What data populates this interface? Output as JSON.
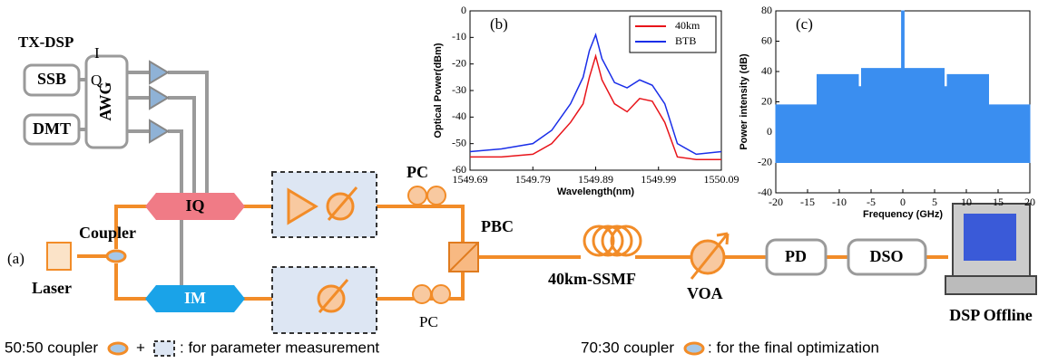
{
  "diagram": {
    "tx_dsp": "TX-DSP",
    "i": "I",
    "q": "Q",
    "ssb": "SSB",
    "dmt": "DMT",
    "awg": "AWG",
    "iq": "IQ",
    "im": "IM",
    "laser": "Laser",
    "coupler": "Coupler",
    "panel_a": "(a)",
    "pc_top": "PC",
    "pc_bottom": "PC",
    "pbc": "PBC",
    "fiber": "40km-SSMF",
    "voa": "VOA",
    "pd": "PD",
    "dso": "DSO",
    "dsp_offline": "DSP Offline",
    "legend": {
      "coupler_5050": "50:50 coupler",
      "plus": "+",
      "param": ": for parameter measurement",
      "coupler_7030": "70:30 coupler",
      "final": ": for the final optimization"
    }
  },
  "chart_data": [
    {
      "type": "line",
      "panel": "(b)",
      "x_label": "Wavelength(nm)",
      "y_label": "Optical Power(dBm)",
      "x": [
        1549.69,
        1549.74,
        1549.79,
        1549.82,
        1549.85,
        1549.87,
        1549.88,
        1549.89,
        1549.9,
        1549.92,
        1549.94,
        1549.96,
        1549.98,
        1550.0,
        1550.02,
        1550.05,
        1550.09
      ],
      "series": [
        {
          "name": "40km",
          "color": "#e8141a",
          "values": [
            -55,
            -55,
            -54,
            -50,
            -42,
            -35,
            -25,
            -17,
            -26,
            -35,
            -38,
            -33,
            -34,
            -42,
            -55,
            -56,
            -56
          ]
        },
        {
          "name": "BTB",
          "color": "#1a2ee8",
          "values": [
            -53,
            -52,
            -50,
            -45,
            -35,
            -25,
            -15,
            -9,
            -18,
            -27,
            -29,
            -26,
            -28,
            -35,
            -50,
            -54,
            -53
          ]
        }
      ],
      "xlim": [
        1549.69,
        1550.09
      ],
      "xticks": [
        1549.69,
        1549.79,
        1549.89,
        1549.99,
        1550.09
      ],
      "ylim": [
        -60,
        0
      ],
      "yticks": [
        -60,
        -50,
        -40,
        -30,
        -20,
        -10,
        0
      ],
      "legend": "upper right"
    },
    {
      "type": "area",
      "panel": "(c)",
      "x_label": "Frequency (GHz)",
      "y_label": "Power intensity (dB)",
      "x": [
        -20,
        -13.5,
        -13.5,
        -7,
        -7,
        -6.5,
        -6.5,
        -0.2,
        -0.2,
        0.2,
        0.2,
        6.5,
        6.5,
        7,
        7,
        13.5,
        13.5,
        20
      ],
      "series": [
        {
          "color": "#3a8ef0",
          "values": [
            18,
            18,
            38,
            38,
            30,
            30,
            42,
            42,
            80,
            80,
            42,
            42,
            30,
            30,
            38,
            38,
            18,
            18
          ]
        }
      ],
      "xlim": [
        -20,
        20
      ],
      "xticks": [
        -20,
        -15,
        -10,
        -5,
        0,
        5,
        10,
        15,
        20
      ],
      "ylim": [
        -40,
        80
      ],
      "yticks": [
        -40,
        -20,
        0,
        20,
        40,
        60,
        80
      ]
    }
  ]
}
